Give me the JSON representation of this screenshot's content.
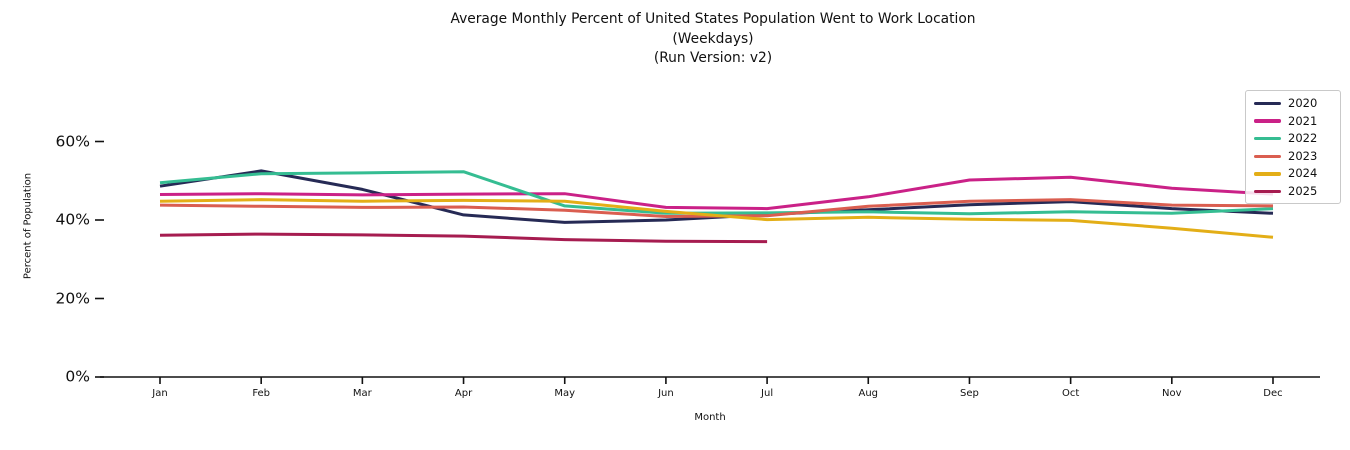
{
  "title": {
    "line1": "Average Monthly Percent of United States Population Went to Work Location",
    "line2": "(Weekdays)",
    "line3": "(Run Version: v2)"
  },
  "axes": {
    "x_label": "Month",
    "y_label": "Percent of Population",
    "x_tick_labels": [
      "Jan",
      "Feb",
      "Mar",
      "Apr",
      "May",
      "Jun",
      "Jul",
      "Aug",
      "Sep",
      "Oct",
      "Nov",
      "Dec"
    ],
    "y_tick_labels": [
      "0%",
      "20%",
      "40%",
      "60%"
    ],
    "y_tick_values": [
      0,
      20,
      40,
      60
    ]
  },
  "legend": {
    "position": "upper right",
    "entries": [
      {
        "label": "2020",
        "color": "#262a55"
      },
      {
        "label": "2021",
        "color": "#ca2187"
      },
      {
        "label": "2022",
        "color": "#35bd92"
      },
      {
        "label": "2023",
        "color": "#da5e50"
      },
      {
        "label": "2024",
        "color": "#e3ae17"
      },
      {
        "label": "2025",
        "color": "#a61c50"
      }
    ]
  },
  "chart_data": {
    "type": "line",
    "title": "Average Monthly Percent of United States Population Went to Work Location",
    "subtitle": "(Weekdays)",
    "run_version": "(Run Version: v2)",
    "xlabel": "Month",
    "ylabel": "Percent of Population",
    "categories": [
      "Jan",
      "Feb",
      "Mar",
      "Apr",
      "May",
      "Jun",
      "Jul",
      "Aug",
      "Sep",
      "Oct",
      "Nov",
      "Dec"
    ],
    "ylim": [
      0,
      65
    ],
    "grid": false,
    "legend_position": "upper right",
    "units": "percent",
    "series": [
      {
        "name": "2020",
        "color": "#262a55",
        "values": [
          48.6,
          52.5,
          47.8,
          41.3,
          39.4,
          40.0,
          41.4,
          42.6,
          43.9,
          44.7,
          42.9,
          41.7
        ]
      },
      {
        "name": "2021",
        "color": "#ca2187",
        "values": [
          46.5,
          46.7,
          46.4,
          46.6,
          46.7,
          43.2,
          42.9,
          45.9,
          50.2,
          50.9,
          48.1,
          46.6
        ]
      },
      {
        "name": "2022",
        "color": "#35bd92",
        "values": [
          49.5,
          51.8,
          52.0,
          52.3,
          43.6,
          41.7,
          41.8,
          42.1,
          41.6,
          42.1,
          41.7,
          42.9
        ]
      },
      {
        "name": "2023",
        "color": "#da5e50",
        "values": [
          43.8,
          43.5,
          43.2,
          43.3,
          42.5,
          40.9,
          41.1,
          43.5,
          44.8,
          45.2,
          43.8,
          43.6
        ]
      },
      {
        "name": "2024",
        "color": "#e3ae17",
        "values": [
          44.8,
          45.2,
          44.8,
          45.0,
          44.8,
          42.2,
          40.1,
          40.7,
          40.2,
          39.9,
          37.9,
          35.6
        ]
      },
      {
        "name": "2025",
        "color": "#a61c50",
        "values": [
          36.1,
          36.4,
          36.2,
          35.9,
          35.0,
          34.6,
          34.5,
          null,
          null,
          null,
          null,
          null
        ]
      }
    ]
  }
}
